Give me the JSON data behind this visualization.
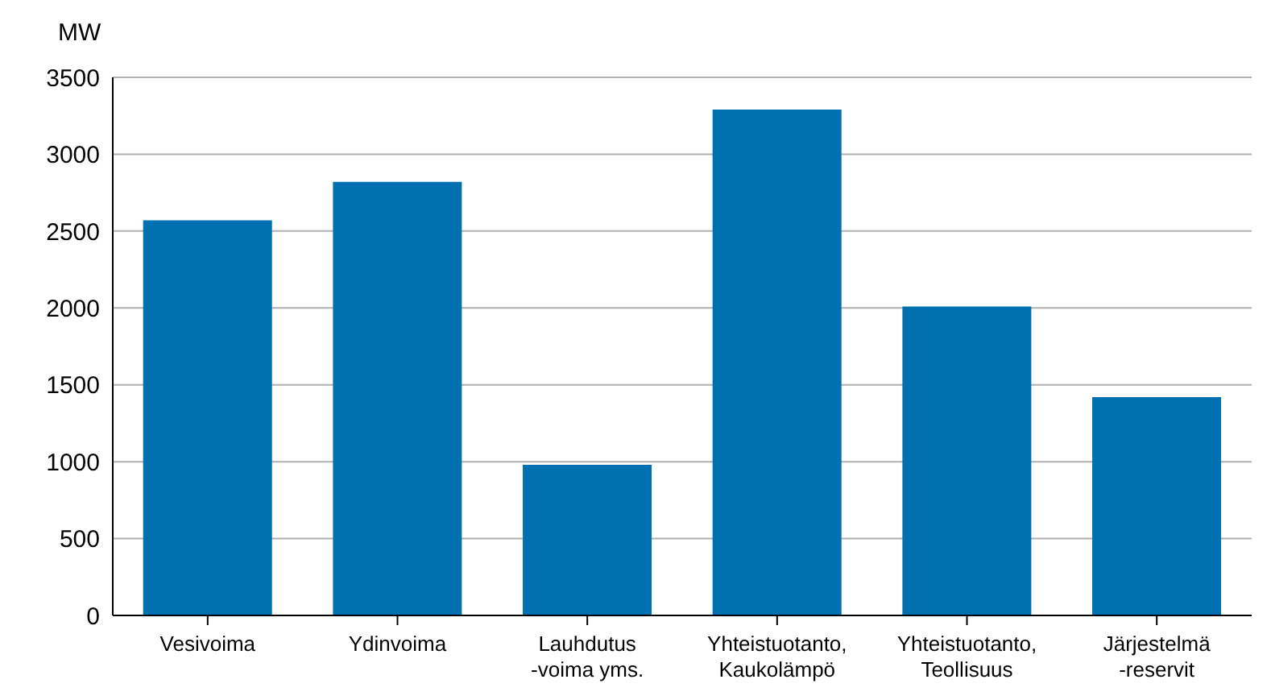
{
  "chart_data": {
    "type": "bar",
    "ylabel": "MW",
    "categories": [
      "Vesivoima",
      "Ydinvoima",
      "Lauhdutus\n-voima yms.",
      "Yhteistuotanto,\nKaukolämpö",
      "Yhteistuotanto,\nTeollisuus",
      "Järjestelmä\n-reservit"
    ],
    "values": [
      2570,
      2820,
      980,
      3290,
      2010,
      1420
    ],
    "color": "#0070b0",
    "ylim": [
      0,
      3500
    ],
    "yticks": [
      0,
      500,
      1000,
      1500,
      2000,
      2500,
      3000,
      3500
    ],
    "grid": "y"
  }
}
